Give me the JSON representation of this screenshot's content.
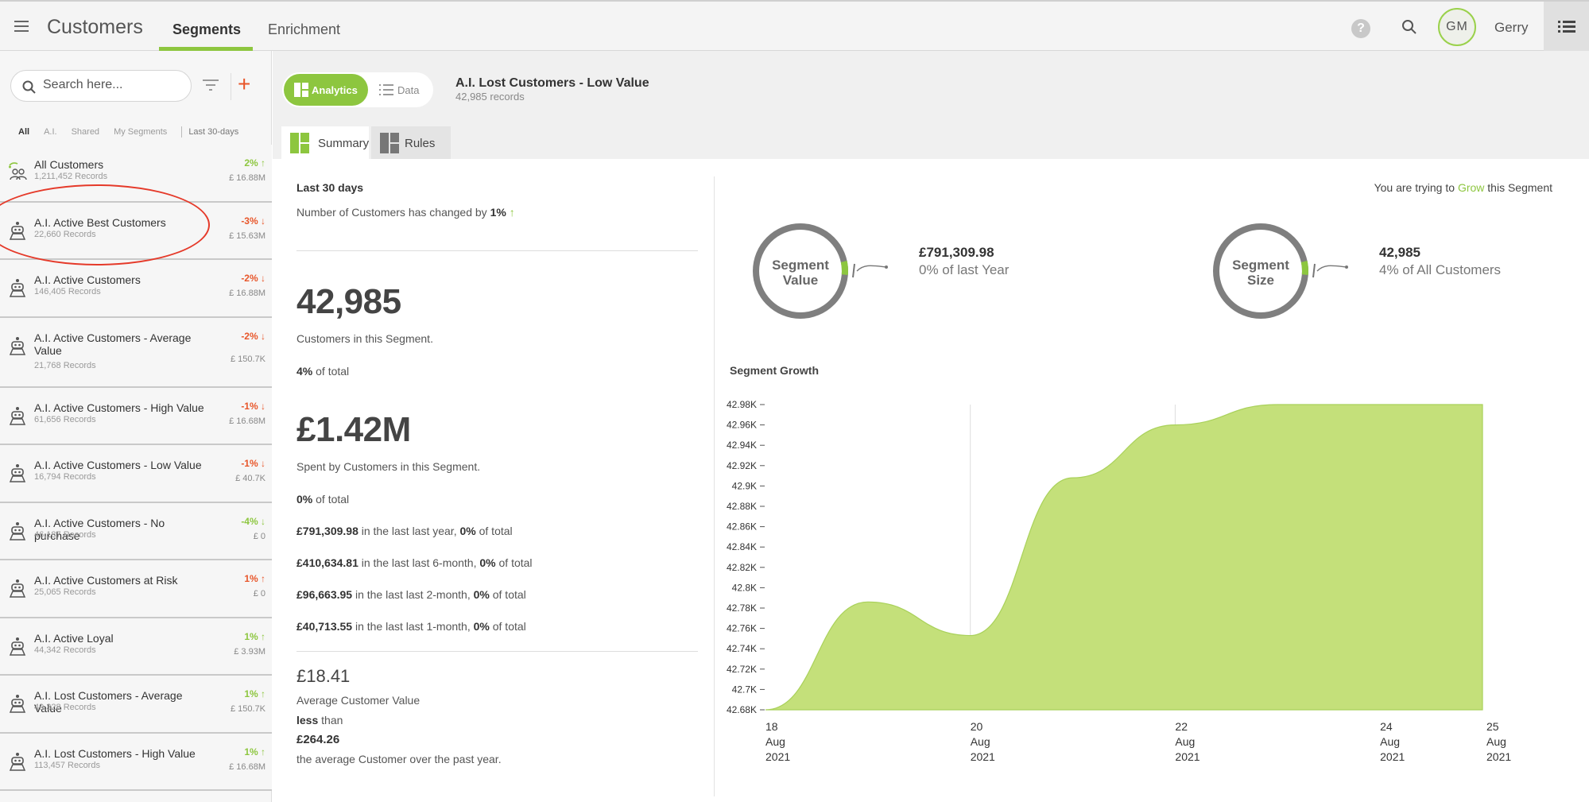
{
  "header": {
    "app_title": "Customers",
    "tabs": [
      {
        "label": "Segments",
        "active": true
      },
      {
        "label": "Enrichment",
        "active": false
      }
    ],
    "help_icon": "?",
    "user_initials": "GM",
    "user_name": "Gerry"
  },
  "sidebar": {
    "search_placeholder": "Search here...",
    "add_icon": "+",
    "filters": [
      "All",
      "A.I.",
      "Shared",
      "My Segments"
    ],
    "date_filter": "Last 30-days",
    "segments": [
      {
        "name": "All Customers",
        "records": "1,211,452 Records",
        "change": "2%",
        "dir": "up",
        "value": "£ 16.88M"
      },
      {
        "name": "A.I. Active Best Customers",
        "records": "22,660 Records",
        "change": "-3%",
        "dir": "down",
        "value": "£ 15.63M"
      },
      {
        "name": "A.I. Active Customers",
        "records": "146,405 Records",
        "change": "-2%",
        "dir": "down",
        "value": "£ 16.88M"
      },
      {
        "name": "A.I. Active Customers - Average Value",
        "records": "21,768 Records",
        "change": "-2%",
        "dir": "down",
        "value": "£ 150.7K"
      },
      {
        "name": "A.I. Active Customers - High Value",
        "records": "61,656 Records",
        "change": "-1%",
        "dir": "down",
        "value": "£ 16.68M"
      },
      {
        "name": "A.I. Active Customers - Low Value",
        "records": "16,794 Records",
        "change": "-1%",
        "dir": "down",
        "value": "£ 40.7K"
      },
      {
        "name": "A.I. Active Customers - No purchase",
        "records": "46,187 Records",
        "change": "-4%",
        "dir": "down-green",
        "value": "£ 0"
      },
      {
        "name": "A.I. Active Customers at Risk",
        "records": "25,065 Records",
        "change": "1%",
        "dir": "up-red",
        "value": "£ 0"
      },
      {
        "name": "A.I. Active Loyal",
        "records": "44,342 Records",
        "change": "1%",
        "dir": "up",
        "value": "£ 3.93M"
      },
      {
        "name": "A.I. Lost Customers - Average Value",
        "records": "49,328 Records",
        "change": "1%",
        "dir": "up",
        "value": "£ 150.7K"
      },
      {
        "name": "A.I. Lost Customers - High Value",
        "records": "113,457 Records",
        "change": "1%",
        "dir": "up",
        "value": "£ 16.68M"
      }
    ]
  },
  "main": {
    "toggle": {
      "analytics": "Analytics",
      "data": "Data"
    },
    "title": "A.I. Lost Customers - Low Value",
    "records": "42,985 records",
    "subtabs": [
      {
        "label": "Summary",
        "active": true
      },
      {
        "label": "Rules",
        "active": false
      }
    ],
    "summary": {
      "period": "Last 30 days",
      "change_text": "Number of Customers has changed by",
      "change_value": "1%",
      "customers_count": "42,985",
      "customers_label": "Customers in this Segment.",
      "customers_pct": "4%",
      "of_total": "of total",
      "spend": "£1.42M",
      "spend_label": "Spent by Customers in this Segment.",
      "spend_pct": "0%",
      "periods": [
        {
          "amount": "£791,309.98",
          "text": "in the last last year,",
          "pct": "0%",
          "tail": "of total"
        },
        {
          "amount": "£410,634.81",
          "text": "in the last last 6-month,",
          "pct": "0%",
          "tail": "of total"
        },
        {
          "amount": "£96,663.95",
          "text": "in the last last 2-month,",
          "pct": "0%",
          "tail": "of total"
        },
        {
          "amount": "£40,713.55",
          "text": "in the last last 1-month,",
          "pct": "0%",
          "tail": "of total"
        }
      ],
      "avg_value": "£18.41",
      "avg_label": "Average Customer Value",
      "less": "less",
      "than": "than",
      "avg_compare": "£264.26",
      "avg_compare_label": "the average Customer over the past year."
    },
    "goal": {
      "prefix": "You are trying to",
      "action": "Grow",
      "suffix": "this Segment"
    },
    "donuts": [
      {
        "label1": "Segment",
        "label2": "Value",
        "value": "£791,309.98",
        "sub": "0% of last Year"
      },
      {
        "label1": "Segment",
        "label2": "Size",
        "value": "42,985",
        "sub": "4% of All Customers"
      }
    ],
    "chart_title": "Segment Growth"
  },
  "colors": {
    "accent": "#8dc63f",
    "negative": "#e8562a",
    "area": "#c4e07a"
  },
  "chart_data": {
    "type": "area",
    "title": "Segment Growth",
    "x_ticks": [
      {
        "d": "18",
        "m": "Aug",
        "y": "2021"
      },
      {
        "d": "20",
        "m": "Aug",
        "y": "2021"
      },
      {
        "d": "22",
        "m": "Aug",
        "y": "2021"
      },
      {
        "d": "24",
        "m": "Aug",
        "y": "2021"
      },
      {
        "d": "25",
        "m": "Aug",
        "y": "2021"
      }
    ],
    "y_ticks": [
      "42.98K",
      "42.96K",
      "42.94K",
      "42.92K",
      "42.9K",
      "42.88K",
      "42.86K",
      "42.84K",
      "42.82K",
      "42.8K",
      "42.78K",
      "42.76K",
      "42.74K",
      "42.72K",
      "42.7K",
      "42.68K"
    ],
    "ylim": [
      42680,
      42980
    ],
    "x": [
      "2021-08-18",
      "2021-08-19",
      "2021-08-20",
      "2021-08-21",
      "2021-08-22",
      "2021-08-23",
      "2021-08-24",
      "2021-08-25"
    ],
    "values": [
      42680,
      42786,
      42753,
      42908,
      42960,
      42980,
      42980,
      42980
    ]
  }
}
